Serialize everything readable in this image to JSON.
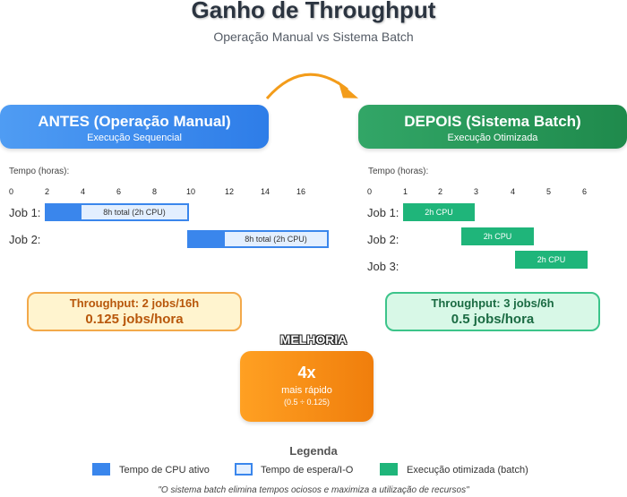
{
  "header": {
    "title": "Ganho de Throughput",
    "subtitle": "Operação Manual vs Sistema Batch"
  },
  "before": {
    "title": "ANTES (Operação Manual)",
    "subtitle": "Execução Sequencial",
    "time_label": "Tempo (horas):",
    "ticks": [
      "0",
      "2",
      "4",
      "6",
      "8",
      "10",
      "12",
      "14",
      "16"
    ],
    "jobs": [
      {
        "label": "Job 1:",
        "bar_text": "8h total (2h CPU)"
      },
      {
        "label": "Job 2:",
        "bar_text": "8h total (2h CPU)"
      }
    ],
    "throughput_line1": "Throughput: 2 jobs/16h",
    "throughput_line2": "0.125 jobs/hora"
  },
  "after": {
    "title": "DEPOIS (Sistema Batch)",
    "subtitle": "Execução Otimizada",
    "time_label": "Tempo (horas):",
    "ticks": [
      "0",
      "1",
      "2",
      "3",
      "4",
      "5",
      "6"
    ],
    "jobs": [
      {
        "label": "Job 1:",
        "bar_text": "2h CPU"
      },
      {
        "label": "Job 2:",
        "bar_text": "2h CPU"
      },
      {
        "label": "Job 3:",
        "bar_text": "2h CPU"
      }
    ],
    "throughput_line1": "Throughput: 3 jobs/6h",
    "throughput_line2": "0.5 jobs/hora"
  },
  "improvement": {
    "label": "MELHORIA",
    "value": "4x",
    "text": "mais rápido",
    "calc": "(0.5 ÷ 0.125)"
  },
  "legend": {
    "title": "Legenda",
    "items": [
      {
        "label": "Tempo de CPU ativo",
        "color": "#3a86ec"
      },
      {
        "label": "Tempo de espera/I-O",
        "color": "#e3efff"
      },
      {
        "label": "Execução otimizada (batch)",
        "color": "#1fb57a"
      }
    ]
  },
  "footer": "\"O sistema batch elimina tempos ociosos e maximiza a utilização de recursos\""
}
